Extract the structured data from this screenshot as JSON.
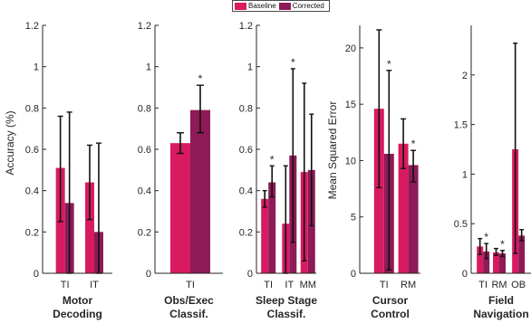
{
  "legend": {
    "baseline_label": "Baseline",
    "corrected_label": "Corrected",
    "baseline_color": "#d81b60",
    "corrected_color": "#8e1a57"
  },
  "chart_data": [
    {
      "type": "bar",
      "title": "Motor Decoding",
      "title_lines": [
        "Motor",
        "Decoding"
      ],
      "ylabel": "Accuracy (%)",
      "ylim": [
        0,
        1.2
      ],
      "yticks": [
        0,
        0.2,
        0.4,
        0.6,
        0.8,
        1,
        1.2
      ],
      "ytick_labels": [
        "0",
        "0.2",
        "0.4",
        "0.6",
        "0.8",
        "1",
        "1.2"
      ],
      "categories": [
        "TI",
        "IT"
      ],
      "series": [
        {
          "name": "Baseline",
          "values": [
            0.51,
            0.44
          ],
          "err_low": [
            0.25,
            0.26
          ],
          "err_high": [
            0.76,
            0.62
          ]
        },
        {
          "name": "Corrected",
          "values": [
            0.34,
            0.2
          ],
          "err_low": [
            0.0,
            0.0
          ],
          "err_high": [
            0.78,
            0.63
          ]
        }
      ],
      "significance": []
    },
    {
      "type": "bar",
      "title": "Obs/Exec Classif.",
      "title_lines": [
        "Obs/Exec",
        "Classif."
      ],
      "ylabel": "",
      "ylim": [
        0,
        1.2
      ],
      "yticks": [
        0,
        0.2,
        0.4,
        0.6,
        0.8,
        1,
        1.2
      ],
      "ytick_labels": [
        "0",
        "0.2",
        "0.4",
        "0.6",
        "0.8",
        "1",
        "1.2"
      ],
      "categories": [
        "TI"
      ],
      "series": [
        {
          "name": "Baseline",
          "values": [
            0.63
          ],
          "err_low": [
            0.58
          ],
          "err_high": [
            0.68
          ]
        },
        {
          "name": "Corrected",
          "values": [
            0.79
          ],
          "err_low": [
            0.68
          ],
          "err_high": [
            0.91
          ]
        }
      ],
      "significance": [
        {
          "category": "TI",
          "series": 1,
          "text": "*"
        }
      ]
    },
    {
      "type": "bar",
      "title": "Sleep Stage Classif.",
      "title_lines": [
        "Sleep Stage",
        "Classif."
      ],
      "ylabel": "",
      "ylim": [
        0,
        1.2
      ],
      "yticks": [
        0,
        0.2,
        0.4,
        0.6,
        0.8,
        1,
        1.2
      ],
      "ytick_labels": [
        "0",
        "0.2",
        "0.4",
        "0.6",
        "0.8",
        "1",
        "1.2"
      ],
      "categories": [
        "TI",
        "IT",
        "MM"
      ],
      "series": [
        {
          "name": "Baseline",
          "values": [
            0.36,
            0.24,
            0.49
          ],
          "err_low": [
            0.32,
            0.0,
            0.06
          ],
          "err_high": [
            0.4,
            0.52,
            0.92
          ]
        },
        {
          "name": "Corrected",
          "values": [
            0.44,
            0.57,
            0.5
          ],
          "err_low": [
            0.37,
            0.15,
            0.23
          ],
          "err_high": [
            0.52,
            0.99,
            0.77
          ]
        }
      ],
      "significance": [
        {
          "category": "TI",
          "series": 1,
          "text": "*"
        },
        {
          "category": "IT",
          "series": 1,
          "text": "*"
        }
      ]
    },
    {
      "type": "bar",
      "title": "Cursor Control",
      "title_lines": [
        "Cursor",
        "Control"
      ],
      "ylabel": "Mean Squared Error",
      "ylim": [
        0,
        22
      ],
      "yticks": [
        0,
        5,
        10,
        15,
        20
      ],
      "ytick_labels": [
        "0",
        "5",
        "10",
        "15",
        "20"
      ],
      "categories": [
        "TI",
        "RM"
      ],
      "series": [
        {
          "name": "Baseline",
          "values": [
            14.6,
            11.5
          ],
          "err_low": [
            7.6,
            9.3
          ],
          "err_high": [
            21.6,
            13.7
          ]
        },
        {
          "name": "Corrected",
          "values": [
            10.6,
            9.6
          ],
          "err_low": [
            0.3,
            8.1
          ],
          "err_high": [
            18.0,
            10.9
          ]
        }
      ],
      "significance": [
        {
          "category": "TI",
          "series": 1,
          "text": "*"
        },
        {
          "category": "RM",
          "series": 1,
          "text": "*"
        }
      ]
    },
    {
      "type": "bar",
      "title": "Field Navigation",
      "title_lines": [
        "Field",
        "Navigation"
      ],
      "ylabel": "",
      "ylim": [
        0,
        2.5
      ],
      "yticks": [
        0,
        0.5,
        1,
        1.5,
        2
      ],
      "ytick_labels": [
        "0",
        "0.5",
        "1",
        "1.5",
        "2"
      ],
      "categories": [
        "TI",
        "RM",
        "OB"
      ],
      "series": [
        {
          "name": "Baseline",
          "values": [
            0.27,
            0.21,
            1.25
          ],
          "err_low": [
            0.19,
            0.18,
            0.2
          ],
          "err_high": [
            0.35,
            0.25,
            2.32
          ]
        },
        {
          "name": "Corrected",
          "values": [
            0.22,
            0.2,
            0.38
          ],
          "err_low": [
            0.15,
            0.17,
            0.33
          ],
          "err_high": [
            0.3,
            0.23,
            0.44
          ]
        }
      ],
      "significance": [
        {
          "category": "TI",
          "series": 1,
          "text": "*"
        },
        {
          "category": "RM",
          "series": 1,
          "text": "*"
        }
      ]
    }
  ]
}
